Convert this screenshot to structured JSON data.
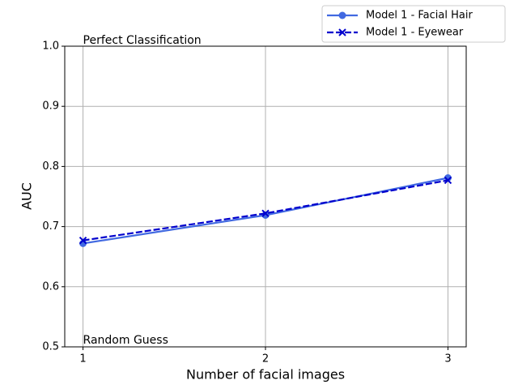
{
  "chart_data": {
    "type": "line",
    "xlabel": "Number of facial images",
    "ylabel": "AUC",
    "x": [
      1,
      2,
      3
    ],
    "xlim": [
      0.9,
      3.1
    ],
    "xticks": [
      1,
      2,
      3
    ],
    "ylim": [
      0.5,
      1.0
    ],
    "yticks": [
      0.5,
      0.6,
      0.7,
      0.8,
      0.9,
      {
        "value": 1,
        "label": "1.0"
      }
    ],
    "grid": true,
    "legend": "upper right",
    "annotations": [
      "Perfect Classification",
      "Random Guess"
    ],
    "series": [
      {
        "name": "Model 1 - Facial Hair",
        "color": "#4169e1",
        "linestyle": "solid",
        "marker": "o",
        "values": [
          0.672,
          0.719,
          0.781
        ]
      },
      {
        "name": "Model 1 - Eyewear",
        "color": "#0000cd",
        "linestyle": "dashed",
        "marker": "x",
        "values": [
          0.677,
          0.722,
          0.777
        ]
      }
    ]
  }
}
